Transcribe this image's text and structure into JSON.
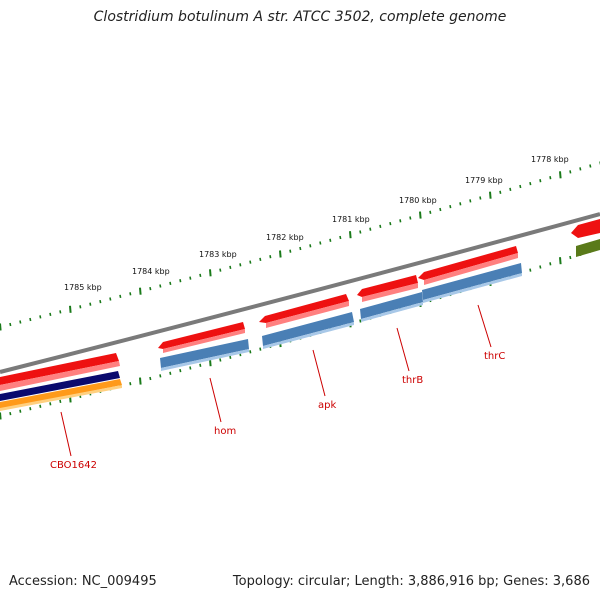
{
  "title": "Clostridium botulinum A str. ATCC 3502, complete genome",
  "accession": "Accession: NC_009495",
  "topology": "Topology: circular; Length: 3,886,916 bp; Genes: 3,686",
  "colors": {
    "backbone": "#7a7a7a",
    "tick": "#1a7a1a",
    "gene_red": "#ee1111",
    "gene_blue": "#4a7fb5",
    "gene_navy": "#0a0a6e",
    "gene_orange": "#ff9a1a",
    "gene_olive": "#5a7a1a",
    "label": "#cc0000"
  },
  "kbp_labels": [
    "1785 kbp",
    "1784 kbp",
    "1783 kbp",
    "1782 kbp",
    "1781 kbp",
    "1780 kbp",
    "1779 kbp",
    "1778 kbp"
  ],
  "genes": [
    "CBO1642",
    "hom",
    "apk",
    "thrB",
    "thrC"
  ]
}
